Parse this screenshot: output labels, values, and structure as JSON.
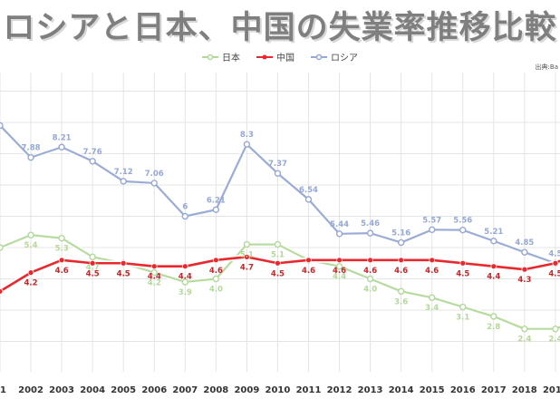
{
  "source": "出典:Ba",
  "colors": {
    "japan": "#b3d99a",
    "china": "#e8282c",
    "russia": "#96a8d4",
    "grid": "#e4e4e4"
  },
  "chart_data": {
    "type": "line",
    "title": "ロシアと日本、中国の失業率推移比較",
    "xlabel": "",
    "ylabel": "",
    "ylim": [
      0,
      12
    ],
    "grid": true,
    "legend_position": "top",
    "categories": [
      "01",
      "2002",
      "2003",
      "2004",
      "2005",
      "2006",
      "2007",
      "2008",
      "2009",
      "2010",
      "2011",
      "2012",
      "2013",
      "2014",
      "2015",
      "2016",
      "2017",
      "2018",
      "2019",
      "20"
    ],
    "series": [
      {
        "name": "日本",
        "key": "japan",
        "values": [
          5.0,
          5.4,
          5.3,
          4.7,
          4.5,
          4.2,
          3.9,
          4.0,
          5.1,
          5.1,
          4.6,
          4.4,
          4.0,
          3.6,
          3.4,
          3.1,
          2.8,
          2.4,
          2.4,
          2.8
        ],
        "labels": [
          "",
          "5.4",
          "5.3",
          "4.7",
          "4.5",
          "4.2",
          "3.9",
          "4.0",
          "5.1",
          "5.1",
          "",
          "4.4",
          "4.0",
          "3.6",
          "3.4",
          "3.1",
          "2.8",
          "2.4",
          "2.4",
          ""
        ]
      },
      {
        "name": "中国",
        "key": "china",
        "values": [
          3.6,
          4.2,
          4.6,
          4.5,
          4.5,
          4.4,
          4.4,
          4.6,
          4.7,
          4.5,
          4.6,
          4.6,
          4.6,
          4.6,
          4.6,
          4.5,
          4.4,
          4.3,
          4.5,
          5.0
        ],
        "labels": [
          "",
          "4.2",
          "4.6",
          "4.5",
          "4.5",
          "4.4",
          "4.4",
          "4.6",
          "4.7",
          "4.5",
          "4.6",
          "4.6",
          "4.6",
          "4.6",
          "4.6",
          "4.5",
          "4.4",
          "4.3",
          "4.5",
          ""
        ]
      },
      {
        "name": "ロシア",
        "key": "russia",
        "values": [
          8.9,
          7.88,
          8.21,
          7.76,
          7.12,
          7.06,
          6.0,
          6.21,
          8.3,
          7.37,
          6.54,
          5.44,
          5.46,
          5.16,
          5.57,
          5.56,
          5.21,
          4.85,
          4.5,
          4.8
        ],
        "labels": [
          "",
          "7.88",
          "8.21",
          "7.76",
          "7.12",
          "7.06",
          "6",
          "6.21",
          "8.3",
          "7.37",
          "6.54",
          "5.44",
          "5.46",
          "5.16",
          "5.57",
          "5.56",
          "5.21",
          "4.85",
          "4.5",
          ""
        ]
      }
    ]
  }
}
